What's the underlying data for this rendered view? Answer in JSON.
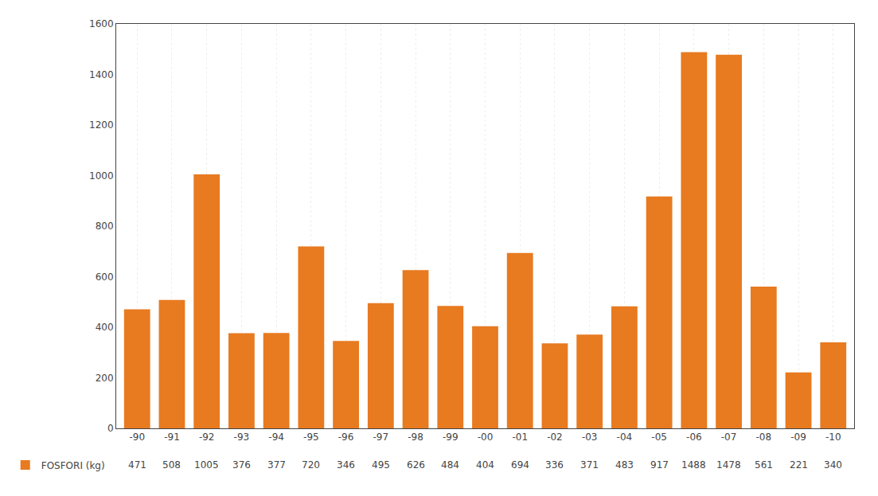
{
  "chart_data": {
    "type": "bar",
    "categories": [
      "-90",
      "-91",
      "-92",
      "-93",
      "-94",
      "-95",
      "-96",
      "-97",
      "-98",
      "-99",
      "-00",
      "-01",
      "-02",
      "-03",
      "-04",
      "-05",
      "-06",
      "-07",
      "-08",
      "-09",
      "-10"
    ],
    "series": [
      {
        "name": "FOSFORI (kg)",
        "color": "#E87A20",
        "values": [
          471,
          508,
          1005,
          376,
          377,
          720,
          346,
          495,
          626,
          484,
          404,
          694,
          336,
          371,
          483,
          917,
          1488,
          1478,
          561,
          221,
          340
        ]
      }
    ],
    "ylim": [
      0,
      1600
    ],
    "yticks": [
      0,
      200,
      400,
      600,
      800,
      1000,
      1200,
      1400,
      1600
    ],
    "grid": "x"
  }
}
